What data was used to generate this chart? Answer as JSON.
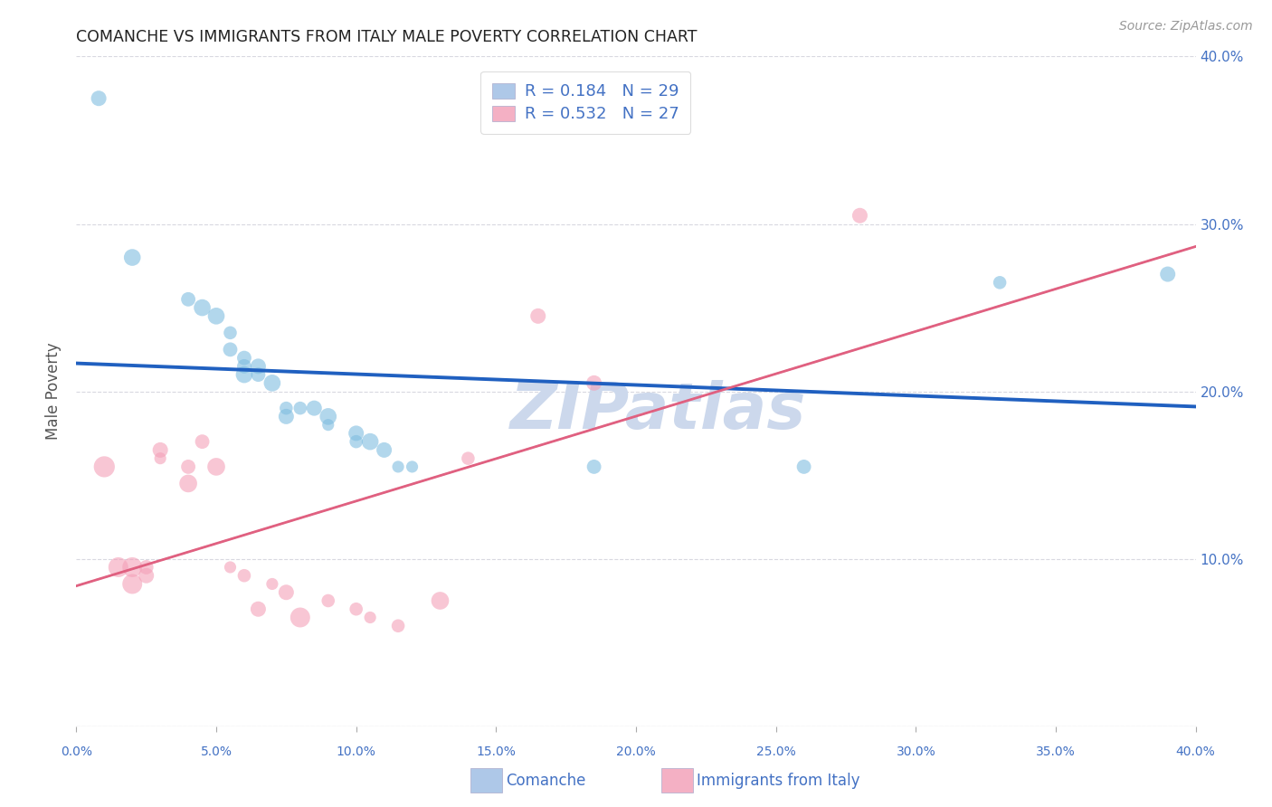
{
  "title": "COMANCHE VS IMMIGRANTS FROM ITALY MALE POVERTY CORRELATION CHART",
  "source": "Source: ZipAtlas.com",
  "ylabel": "Male Poverty",
  "xlim": [
    0.0,
    0.4
  ],
  "ylim": [
    0.0,
    0.4
  ],
  "comanche_scatter": [
    [
      0.008,
      0.375
    ],
    [
      0.02,
      0.28
    ],
    [
      0.04,
      0.255
    ],
    [
      0.045,
      0.25
    ],
    [
      0.05,
      0.245
    ],
    [
      0.055,
      0.235
    ],
    [
      0.055,
      0.225
    ],
    [
      0.06,
      0.22
    ],
    [
      0.06,
      0.215
    ],
    [
      0.06,
      0.21
    ],
    [
      0.065,
      0.215
    ],
    [
      0.065,
      0.21
    ],
    [
      0.07,
      0.205
    ],
    [
      0.075,
      0.19
    ],
    [
      0.075,
      0.185
    ],
    [
      0.08,
      0.19
    ],
    [
      0.085,
      0.19
    ],
    [
      0.09,
      0.185
    ],
    [
      0.09,
      0.18
    ],
    [
      0.1,
      0.175
    ],
    [
      0.1,
      0.17
    ],
    [
      0.105,
      0.17
    ],
    [
      0.11,
      0.165
    ],
    [
      0.115,
      0.155
    ],
    [
      0.12,
      0.155
    ],
    [
      0.185,
      0.155
    ],
    [
      0.26,
      0.155
    ],
    [
      0.33,
      0.265
    ],
    [
      0.39,
      0.27
    ]
  ],
  "italy_scatter": [
    [
      0.01,
      0.155
    ],
    [
      0.015,
      0.095
    ],
    [
      0.02,
      0.095
    ],
    [
      0.02,
      0.085
    ],
    [
      0.025,
      0.095
    ],
    [
      0.025,
      0.09
    ],
    [
      0.03,
      0.165
    ],
    [
      0.03,
      0.16
    ],
    [
      0.04,
      0.155
    ],
    [
      0.04,
      0.145
    ],
    [
      0.045,
      0.17
    ],
    [
      0.05,
      0.155
    ],
    [
      0.055,
      0.095
    ],
    [
      0.06,
      0.09
    ],
    [
      0.065,
      0.07
    ],
    [
      0.07,
      0.085
    ],
    [
      0.075,
      0.08
    ],
    [
      0.08,
      0.065
    ],
    [
      0.09,
      0.075
    ],
    [
      0.1,
      0.07
    ],
    [
      0.105,
      0.065
    ],
    [
      0.115,
      0.06
    ],
    [
      0.13,
      0.075
    ],
    [
      0.14,
      0.16
    ],
    [
      0.165,
      0.245
    ],
    [
      0.185,
      0.205
    ],
    [
      0.28,
      0.305
    ]
  ],
  "comanche_color": "#7fbde0",
  "comanche_edge": "#7fbde0",
  "italy_color": "#f4a0b8",
  "italy_edge": "#f4a0b8",
  "comanche_line_color": "#2060c0",
  "italy_line_color": "#e06080",
  "italy_dashed_color": "#e0a0b8",
  "background_color": "#ffffff",
  "watermark": "ZIPatlas",
  "watermark_color": "#ccd8ec",
  "grid_color": "#d8d8e0",
  "title_color": "#222222",
  "axis_label_color": "#4472c4",
  "legend_r_color": "#4472c4",
  "comanche_r": 0.184,
  "comanche_n": 29,
  "italy_r": 0.532,
  "italy_n": 27,
  "legend_comanche_patch": "#aec8e8",
  "legend_italy_patch": "#f4b0c4"
}
